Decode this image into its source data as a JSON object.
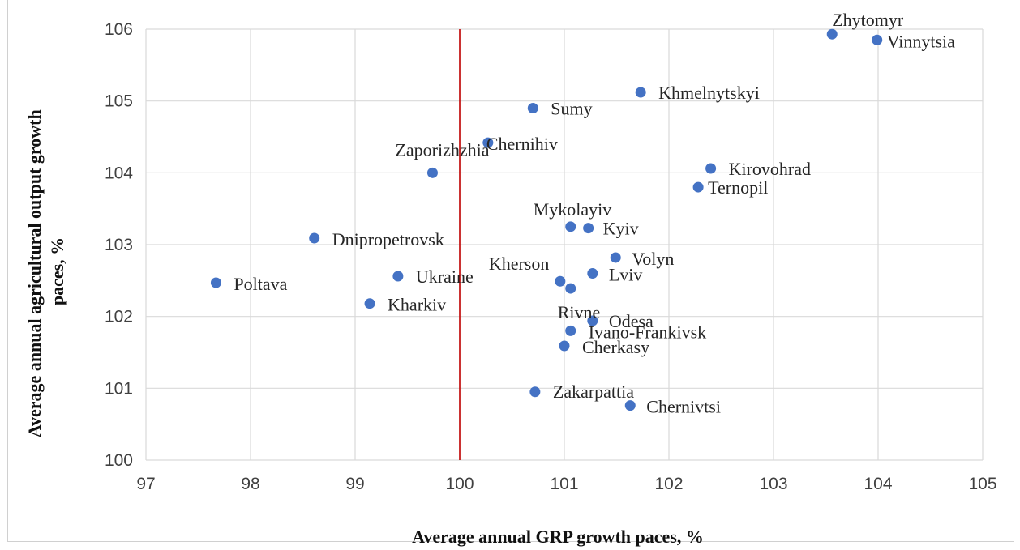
{
  "chart_data": {
    "type": "scatter",
    "title": "",
    "xlabel": "Average annual GRP growth paces, %",
    "ylabel": "Average annual agricultural output growth paces, %",
    "ylabel_lines": [
      "Average annual agricultural output growth",
      "paces, %"
    ],
    "xlim": [
      97,
      105
    ],
    "ylim": [
      100,
      106
    ],
    "x_ticks": [
      "97",
      "98",
      "99",
      "100",
      "101",
      "102",
      "103",
      "104",
      "105"
    ],
    "y_ticks": [
      "100",
      "101",
      "102",
      "103",
      "104",
      "105",
      "106"
    ],
    "grid": true,
    "reference_line": {
      "x": 100,
      "color": "#c00000"
    },
    "marker_color": "#4472c4",
    "points": [
      {
        "label": "Zhytomyr",
        "x": 103.56,
        "y": 105.93
      },
      {
        "label": "Vinnytsia",
        "x": 103.99,
        "y": 105.85
      },
      {
        "label": "Khmelnytskyi",
        "x": 101.73,
        "y": 105.12
      },
      {
        "label": "Sumy",
        "x": 100.7,
        "y": 104.9
      },
      {
        "label": "Chernihiv",
        "x": 100.27,
        "y": 104.42
      },
      {
        "label": "Zaporizhzhia",
        "x": 99.74,
        "y": 104.0
      },
      {
        "label": "Kirovohrad",
        "x": 102.4,
        "y": 104.06
      },
      {
        "label": "Ternopil",
        "x": 102.28,
        "y": 103.8
      },
      {
        "label": "Mykolayiv",
        "x": 101.06,
        "y": 103.25
      },
      {
        "label": "Kyiv",
        "x": 101.23,
        "y": 103.23
      },
      {
        "label": "Dnipropetrovsk",
        "x": 98.61,
        "y": 103.09
      },
      {
        "label": "Volyn",
        "x": 101.49,
        "y": 102.82
      },
      {
        "label": "Kherson",
        "x": 100.96,
        "y": 102.49
      },
      {
        "label": "Lviv",
        "x": 101.27,
        "y": 102.6
      },
      {
        "label": "Poltava",
        "x": 97.67,
        "y": 102.47
      },
      {
        "label": "Ukraine",
        "x": 99.41,
        "y": 102.56
      },
      {
        "label": "Rivne",
        "x": 101.06,
        "y": 102.39
      },
      {
        "label": "Kharkiv",
        "x": 99.14,
        "y": 102.18
      },
      {
        "label": "Odesa",
        "x": 101.27,
        "y": 101.94
      },
      {
        "label": "Ivano-Frankivsk",
        "x": 101.06,
        "y": 101.8
      },
      {
        "label": "Cherkasy",
        "x": 101.0,
        "y": 101.59
      },
      {
        "label": "Zakarpattia",
        "x": 100.72,
        "y": 100.95
      },
      {
        "label": "Chernivtsi",
        "x": 101.63,
        "y": 100.76
      }
    ]
  }
}
